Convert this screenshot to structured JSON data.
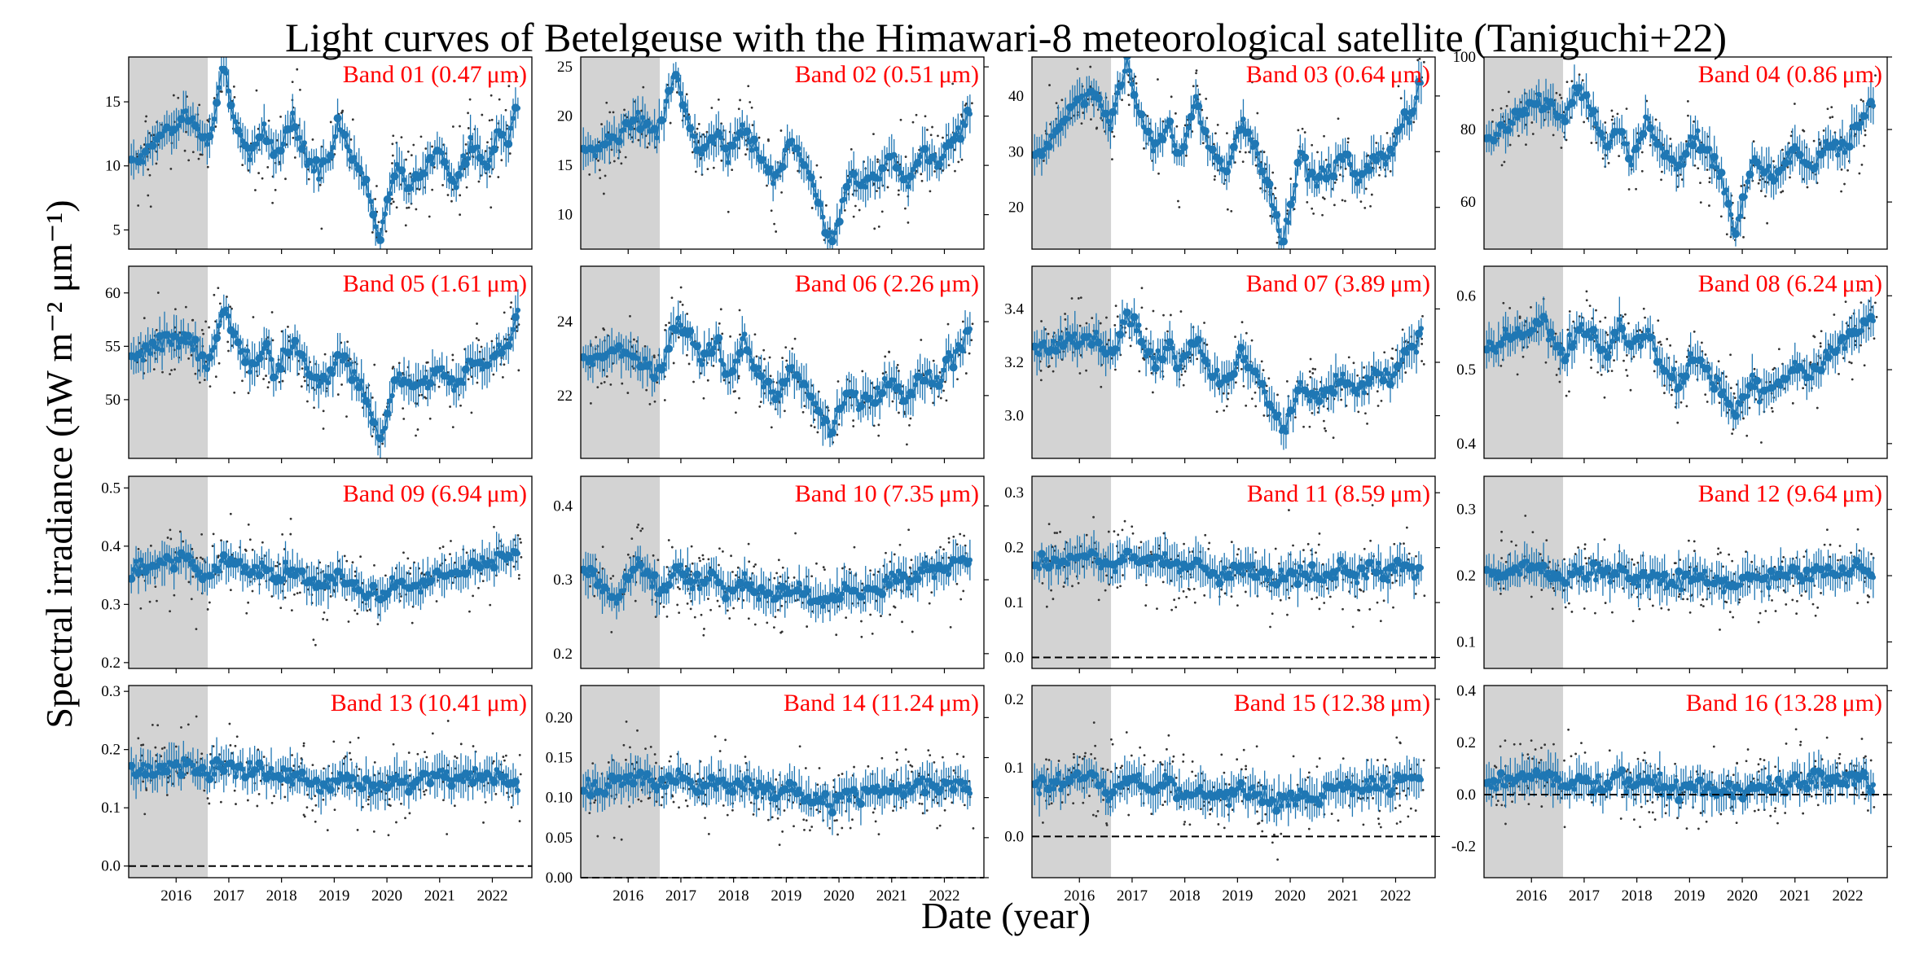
{
  "chart_data": {
    "type": "scatter",
    "title": "Light curves of Betelgeuse with the Himawari-8 meteorological satellite (Taniguchi+22)",
    "xlabel": "Date  (year)",
    "ylabel": "Spectral irradiance  (nW m⁻² μm⁻¹)",
    "xlim": [
      2015.1,
      2022.75
    ],
    "xticks": [
      "2016",
      "2017",
      "2018",
      "2019",
      "2020",
      "2021",
      "2022"
    ],
    "shaded_interval": [
      2015.1,
      2016.6
    ],
    "series_color": "#1f77b4",
    "label_color": "#ff0000",
    "panels": [
      {
        "label": "Band 01 (0.47 μm)",
        "ylim": [
          3.5,
          18.5
        ],
        "yticks": [
          5,
          10,
          15
        ],
        "x": [
          2015.3,
          2015.8,
          2016.2,
          2016.6,
          2016.9,
          2017.1,
          2017.4,
          2017.7,
          2017.9,
          2018.2,
          2018.5,
          2018.8,
          2019.1,
          2019.4,
          2019.7,
          2019.85,
          2020.0,
          2020.2,
          2020.4,
          2020.7,
          2021.0,
          2021.3,
          2021.6,
          2021.9,
          2022.1,
          2022.3,
          2022.45
        ],
        "y": [
          10.5,
          12.5,
          14.0,
          11.5,
          18.0,
          13.5,
          11.0,
          12.5,
          10.5,
          14.0,
          10.5,
          9.5,
          13.5,
          10.0,
          7.5,
          4.0,
          7.0,
          10.0,
          8.0,
          9.5,
          11.0,
          8.5,
          11.5,
          10.0,
          12.5,
          12.0,
          14.5
        ]
      },
      {
        "label": "Band 02 (0.51 μm)",
        "ylim": [
          6.5,
          26
        ],
        "yticks": [
          10,
          15,
          20,
          25
        ],
        "x": [
          2015.3,
          2015.8,
          2016.2,
          2016.6,
          2016.9,
          2017.1,
          2017.4,
          2017.7,
          2017.9,
          2018.2,
          2018.5,
          2018.8,
          2019.1,
          2019.4,
          2019.7,
          2019.85,
          2020.0,
          2020.2,
          2020.4,
          2020.7,
          2021.0,
          2021.3,
          2021.6,
          2021.9,
          2022.1,
          2022.3,
          2022.45
        ],
        "y": [
          16.5,
          18.0,
          20.0,
          18.5,
          24.5,
          19.5,
          16.5,
          18.0,
          16.0,
          19.0,
          15.5,
          13.5,
          17.5,
          14.5,
          10.0,
          7.0,
          9.5,
          14.0,
          13.0,
          14.0,
          15.5,
          13.5,
          16.5,
          15.0,
          17.5,
          18.0,
          20.5
        ]
      },
      {
        "label": "Band 03 (0.64 μm)",
        "ylim": [
          12.5,
          47
        ],
        "yticks": [
          20,
          30,
          40
        ],
        "x": [
          2015.3,
          2015.8,
          2016.2,
          2016.6,
          2016.9,
          2017.1,
          2017.4,
          2017.7,
          2017.9,
          2018.2,
          2018.5,
          2018.8,
          2019.1,
          2019.4,
          2019.7,
          2019.85,
          2020.0,
          2020.2,
          2020.4,
          2020.7,
          2021.0,
          2021.3,
          2021.6,
          2021.9,
          2022.1,
          2022.3,
          2022.45
        ],
        "y": [
          30.0,
          37.0,
          41.0,
          35.0,
          45.5,
          38.0,
          30.0,
          35.0,
          28.0,
          39.0,
          30.0,
          26.0,
          36.0,
          29.0,
          20.0,
          13.5,
          19.0,
          31.0,
          25.0,
          26.0,
          30.0,
          24.0,
          30.0,
          29.0,
          35.0,
          36.0,
          42.0
        ]
      },
      {
        "label": "Band 04 (0.86 μm)",
        "ylim": [
          47,
          100
        ],
        "yticks": [
          60,
          80,
          100
        ],
        "x": [
          2015.3,
          2015.8,
          2016.2,
          2016.6,
          2016.9,
          2017.1,
          2017.4,
          2017.7,
          2017.9,
          2018.2,
          2018.5,
          2018.8,
          2019.1,
          2019.4,
          2019.7,
          2019.85,
          2020.0,
          2020.2,
          2020.4,
          2020.7,
          2021.0,
          2021.3,
          2021.6,
          2021.9,
          2022.1,
          2022.3,
          2022.45
        ],
        "y": [
          78,
          85,
          88,
          83,
          92,
          86,
          75,
          80,
          72,
          82,
          74,
          70,
          78,
          73,
          62,
          50,
          58,
          72,
          67,
          68,
          75,
          68,
          76,
          74,
          80,
          82,
          88
        ]
      },
      {
        "label": "Band 05 (1.61 μm)",
        "ylim": [
          44.5,
          62.5
        ],
        "yticks": [
          50,
          55,
          60
        ],
        "x": [
          2015.3,
          2015.8,
          2016.2,
          2016.6,
          2016.9,
          2017.1,
          2017.4,
          2017.7,
          2017.9,
          2018.2,
          2018.5,
          2018.8,
          2019.1,
          2019.4,
          2019.7,
          2019.85,
          2020.0,
          2020.2,
          2020.4,
          2020.7,
          2021.0,
          2021.3,
          2021.6,
          2021.9,
          2022.1,
          2022.3,
          2022.45
        ],
        "y": [
          54.0,
          55.5,
          56.0,
          53.0,
          58.5,
          56.0,
          53.0,
          55.0,
          52.5,
          55.5,
          52.5,
          51.5,
          54.5,
          52.0,
          49.0,
          46.0,
          48.5,
          52.5,
          51.0,
          51.5,
          53.0,
          51.0,
          53.5,
          53.0,
          54.5,
          55.0,
          58.0
        ]
      },
      {
        "label": "Band 06 (2.26 μm)",
        "ylim": [
          20.3,
          25.5
        ],
        "yticks": [
          22,
          24
        ],
        "x": [
          2015.3,
          2015.8,
          2016.2,
          2016.6,
          2016.9,
          2017.1,
          2017.4,
          2017.7,
          2017.9,
          2018.2,
          2018.5,
          2018.8,
          2019.1,
          2019.4,
          2019.7,
          2019.85,
          2020.0,
          2020.2,
          2020.4,
          2020.7,
          2021.0,
          2021.3,
          2021.6,
          2021.9,
          2022.1,
          2022.3,
          2022.45
        ],
        "y": [
          23.0,
          23.2,
          23.0,
          22.6,
          24.0,
          23.8,
          23.0,
          23.5,
          22.5,
          23.4,
          22.6,
          22.0,
          22.8,
          22.2,
          21.4,
          21.0,
          21.5,
          22.2,
          21.8,
          22.0,
          22.4,
          21.8,
          22.5,
          22.3,
          23.0,
          23.2,
          23.8
        ]
      },
      {
        "label": "Band 07 (3.89 μm)",
        "ylim": [
          2.84,
          3.56
        ],
        "yticks": [
          3.0,
          3.2,
          3.4
        ],
        "x": [
          2015.3,
          2015.8,
          2016.2,
          2016.6,
          2016.9,
          2017.1,
          2017.4,
          2017.7,
          2017.9,
          2018.2,
          2018.5,
          2018.8,
          2019.1,
          2019.4,
          2019.7,
          2019.85,
          2020.0,
          2020.2,
          2020.4,
          2020.7,
          2021.0,
          2021.3,
          2021.6,
          2021.9,
          2022.1,
          2022.3,
          2022.45
        ],
        "y": [
          3.25,
          3.28,
          3.3,
          3.22,
          3.38,
          3.32,
          3.2,
          3.26,
          3.18,
          3.28,
          3.16,
          3.12,
          3.24,
          3.14,
          3.02,
          2.95,
          3.0,
          3.12,
          3.06,
          3.08,
          3.14,
          3.08,
          3.16,
          3.14,
          3.22,
          3.24,
          3.3
        ]
      },
      {
        "label": "Band 08 (6.24 μm)",
        "ylim": [
          0.38,
          0.64
        ],
        "yticks": [
          0.4,
          0.5,
          0.6
        ],
        "x": [
          2015.3,
          2015.8,
          2016.2,
          2016.6,
          2016.9,
          2017.1,
          2017.4,
          2017.7,
          2017.9,
          2018.2,
          2018.5,
          2018.8,
          2019.1,
          2019.4,
          2019.7,
          2019.85,
          2020.0,
          2020.2,
          2020.4,
          2020.7,
          2021.0,
          2021.3,
          2021.6,
          2021.9,
          2022.1,
          2022.3,
          2022.45
        ],
        "y": [
          0.53,
          0.55,
          0.56,
          0.52,
          0.56,
          0.55,
          0.52,
          0.56,
          0.53,
          0.55,
          0.5,
          0.48,
          0.52,
          0.49,
          0.46,
          0.44,
          0.46,
          0.48,
          0.47,
          0.48,
          0.5,
          0.49,
          0.52,
          0.53,
          0.55,
          0.56,
          0.57
        ]
      },
      {
        "label": "Band 09 (6.94 μm)",
        "ylim": [
          0.19,
          0.52
        ],
        "yticks": [
          0.2,
          0.3,
          0.4,
          0.5
        ],
        "x": [
          2015.3,
          2015.8,
          2016.2,
          2016.6,
          2016.9,
          2017.1,
          2017.4,
          2017.7,
          2017.9,
          2018.2,
          2018.5,
          2018.8,
          2019.1,
          2019.4,
          2019.7,
          2019.85,
          2020.0,
          2020.2,
          2020.4,
          2020.7,
          2021.0,
          2021.3,
          2021.6,
          2021.9,
          2022.1,
          2022.3,
          2022.45
        ],
        "y": [
          0.36,
          0.37,
          0.38,
          0.34,
          0.38,
          0.37,
          0.35,
          0.37,
          0.34,
          0.36,
          0.34,
          0.33,
          0.35,
          0.33,
          0.32,
          0.31,
          0.32,
          0.34,
          0.33,
          0.34,
          0.36,
          0.35,
          0.37,
          0.37,
          0.38,
          0.38,
          0.39
        ]
      },
      {
        "label": "Band 10 (7.35 μm)",
        "ylim": [
          0.18,
          0.44
        ],
        "yticks": [
          0.2,
          0.3,
          0.4
        ],
        "x": [
          2015.3,
          2015.8,
          2016.2,
          2016.6,
          2016.9,
          2017.1,
          2017.4,
          2017.7,
          2017.9,
          2018.2,
          2018.5,
          2018.8,
          2019.1,
          2019.4,
          2019.7,
          2019.85,
          2020.0,
          2020.2,
          2020.4,
          2020.7,
          2021.0,
          2021.3,
          2021.6,
          2021.9,
          2022.1,
          2022.3,
          2022.45
        ],
        "y": [
          0.31,
          0.27,
          0.33,
          0.28,
          0.31,
          0.3,
          0.29,
          0.31,
          0.28,
          0.3,
          0.28,
          0.28,
          0.29,
          0.28,
          0.27,
          0.27,
          0.28,
          0.29,
          0.28,
          0.29,
          0.3,
          0.3,
          0.31,
          0.31,
          0.32,
          0.32,
          0.33
        ]
      },
      {
        "label": "Band 11 (8.59 μm)",
        "ylim": [
          -0.02,
          0.33
        ],
        "yticks": [
          0.0,
          0.1,
          0.2,
          0.3
        ],
        "x": [
          2015.3,
          2015.8,
          2016.2,
          2016.6,
          2016.9,
          2017.1,
          2017.4,
          2017.7,
          2017.9,
          2018.2,
          2018.5,
          2018.8,
          2019.1,
          2019.4,
          2019.7,
          2019.85,
          2020.0,
          2020.2,
          2020.4,
          2020.7,
          2021.0,
          2021.3,
          2021.6,
          2021.9,
          2022.1,
          2022.3,
          2022.45
        ],
        "y": [
          0.17,
          0.18,
          0.19,
          0.16,
          0.19,
          0.18,
          0.17,
          0.18,
          0.16,
          0.17,
          0.15,
          0.15,
          0.16,
          0.15,
          0.14,
          0.14,
          0.15,
          0.15,
          0.15,
          0.15,
          0.16,
          0.15,
          0.16,
          0.16,
          0.17,
          0.16,
          0.15
        ]
      },
      {
        "label": "Band 12 (9.64 μm)",
        "ylim": [
          0.06,
          0.35
        ],
        "yticks": [
          0.1,
          0.2,
          0.3
        ],
        "x": [
          2015.3,
          2015.8,
          2016.2,
          2016.6,
          2016.9,
          2017.1,
          2017.4,
          2017.7,
          2017.9,
          2018.2,
          2018.5,
          2018.8,
          2019.1,
          2019.4,
          2019.7,
          2019.85,
          2020.0,
          2020.2,
          2020.4,
          2020.7,
          2021.0,
          2021.3,
          2021.6,
          2021.9,
          2022.1,
          2022.3,
          2022.45
        ],
        "y": [
          0.2,
          0.21,
          0.21,
          0.19,
          0.21,
          0.21,
          0.2,
          0.21,
          0.19,
          0.2,
          0.19,
          0.19,
          0.2,
          0.19,
          0.19,
          0.18,
          0.19,
          0.2,
          0.19,
          0.2,
          0.2,
          0.2,
          0.21,
          0.21,
          0.21,
          0.21,
          0.2
        ]
      },
      {
        "label": "Band 13 (10.41 μm)",
        "ylim": [
          -0.02,
          0.31
        ],
        "yticks": [
          0.0,
          0.1,
          0.2,
          0.3
        ],
        "x": [
          2015.3,
          2015.8,
          2016.2,
          2016.6,
          2016.9,
          2017.1,
          2017.4,
          2017.7,
          2017.9,
          2018.2,
          2018.5,
          2018.8,
          2019.1,
          2019.4,
          2019.7,
          2019.85,
          2020.0,
          2020.2,
          2020.4,
          2020.7,
          2021.0,
          2021.3,
          2021.6,
          2021.9,
          2022.1,
          2022.3,
          2022.45
        ],
        "y": [
          0.16,
          0.17,
          0.18,
          0.15,
          0.18,
          0.17,
          0.16,
          0.17,
          0.15,
          0.16,
          0.15,
          0.14,
          0.15,
          0.14,
          0.13,
          0.13,
          0.14,
          0.15,
          0.14,
          0.15,
          0.16,
          0.15,
          0.16,
          0.15,
          0.16,
          0.15,
          0.14
        ]
      },
      {
        "label": "Band 14 (11.24 μm)",
        "ylim": [
          0.0,
          0.24
        ],
        "yticks": [
          0.0,
          0.05,
          0.1,
          0.15,
          0.2
        ],
        "x": [
          2015.3,
          2015.8,
          2016.2,
          2016.6,
          2016.9,
          2017.1,
          2017.4,
          2017.7,
          2017.9,
          2018.2,
          2018.5,
          2018.8,
          2019.1,
          2019.4,
          2019.7,
          2019.85,
          2020.0,
          2020.2,
          2020.4,
          2020.7,
          2021.0,
          2021.3,
          2021.6,
          2021.9,
          2022.1,
          2022.3,
          2022.45
        ],
        "y": [
          0.11,
          0.12,
          0.13,
          0.11,
          0.13,
          0.12,
          0.11,
          0.12,
          0.11,
          0.12,
          0.11,
          0.1,
          0.11,
          0.1,
          0.1,
          0.09,
          0.1,
          0.11,
          0.1,
          0.11,
          0.11,
          0.11,
          0.12,
          0.11,
          0.12,
          0.12,
          0.11
        ]
      },
      {
        "label": "Band 15 (12.38 μm)",
        "ylim": [
          -0.06,
          0.22
        ],
        "yticks": [
          0.0,
          0.1,
          0.2
        ],
        "x": [
          2015.3,
          2015.8,
          2016.2,
          2016.6,
          2016.9,
          2017.1,
          2017.4,
          2017.7,
          2017.9,
          2018.2,
          2018.5,
          2018.8,
          2019.1,
          2019.4,
          2019.7,
          2019.85,
          2020.0,
          2020.2,
          2020.4,
          2020.7,
          2021.0,
          2021.3,
          2021.6,
          2021.9,
          2022.1,
          2022.3,
          2022.45
        ],
        "y": [
          0.07,
          0.08,
          0.09,
          0.06,
          0.08,
          0.08,
          0.07,
          0.08,
          0.06,
          0.07,
          0.06,
          0.06,
          0.07,
          0.06,
          0.05,
          0.05,
          0.06,
          0.06,
          0.06,
          0.07,
          0.07,
          0.07,
          0.08,
          0.07,
          0.08,
          0.08,
          0.09
        ]
      },
      {
        "label": "Band 16 (13.28 μm)",
        "ylim": [
          -0.32,
          0.42
        ],
        "yticks": [
          -0.2,
          0.0,
          0.2,
          0.4
        ],
        "x": [
          2015.3,
          2015.8,
          2016.2,
          2016.6,
          2016.9,
          2017.1,
          2017.4,
          2017.7,
          2017.9,
          2018.2,
          2018.5,
          2018.8,
          2019.1,
          2019.4,
          2019.7,
          2019.85,
          2020.0,
          2020.2,
          2020.4,
          2020.7,
          2021.0,
          2021.3,
          2021.6,
          2021.9,
          2022.1,
          2022.3,
          2022.45
        ],
        "y": [
          0.04,
          0.06,
          0.08,
          0.03,
          0.07,
          0.06,
          0.04,
          0.06,
          0.03,
          0.05,
          0.03,
          0.02,
          0.04,
          0.02,
          0.01,
          0.0,
          0.01,
          0.03,
          0.02,
          0.04,
          0.06,
          0.05,
          0.07,
          0.06,
          0.08,
          0.07,
          0.05
        ]
      }
    ]
  }
}
